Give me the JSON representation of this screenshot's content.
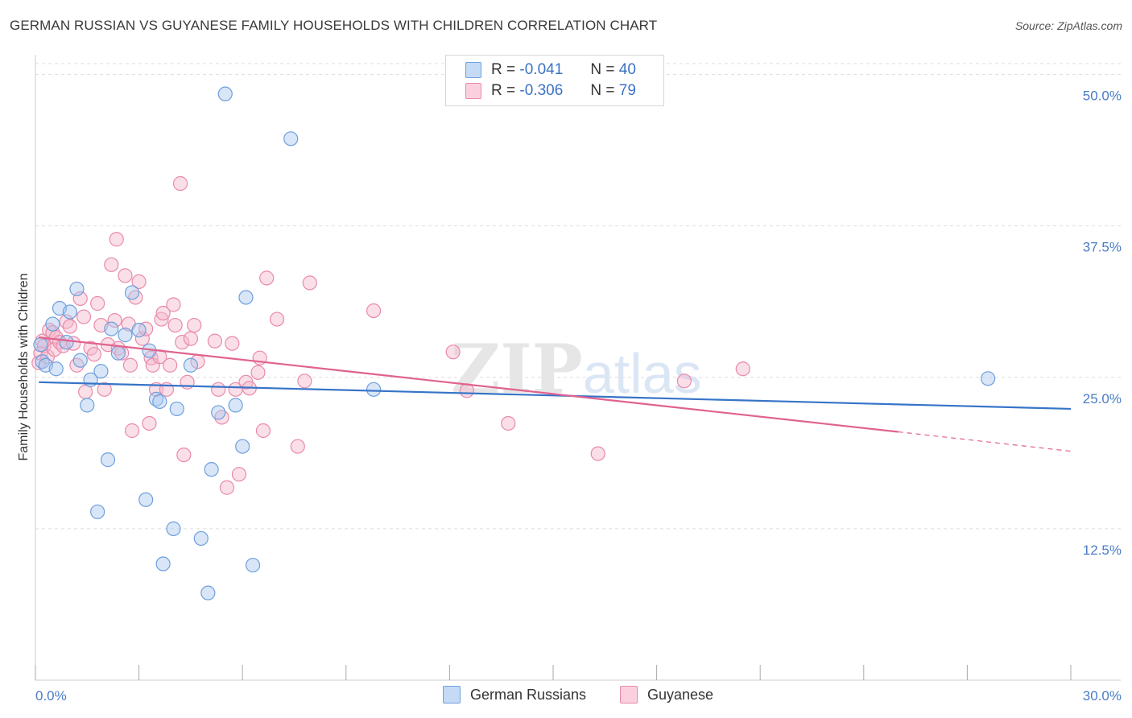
{
  "header": {
    "title": "GERMAN RUSSIAN VS GUYANESE FAMILY HOUSEHOLDS WITH CHILDREN CORRELATION CHART",
    "source": "Source: ZipAtlas.com"
  },
  "watermark": "ZIPatlas",
  "legend": {
    "rows": [
      {
        "r_label": "R = ",
        "r_value": "-0.041",
        "n_label": "N = ",
        "n_value": "40"
      },
      {
        "r_label": "R = ",
        "r_value": "-0.306",
        "n_label": "N = ",
        "n_value": "79"
      }
    ]
  },
  "colors": {
    "blue_fill": "#a9c8f0",
    "blue_stroke": "#6f9fdc",
    "blue_line": "#3674c8",
    "pink_fill": "#f5b8cc",
    "pink_stroke": "#e98aaa",
    "pink_line": "#e0628f",
    "grid": "#dddddd",
    "tick_text": "#4a7cc4"
  },
  "chart_data": {
    "type": "scatter",
    "title": "GERMAN RUSSIAN VS GUYANESE FAMILY HOUSEHOLDS WITH CHILDREN CORRELATION CHART",
    "xlabel": "",
    "ylabel": "Family Households with Children",
    "xlim": [
      0,
      30
    ],
    "ylim": [
      0,
      51.5
    ],
    "x_tick_labels": [
      "0.0%",
      "30.0%"
    ],
    "y_ticks": [
      {
        "value": 12.5,
        "label": "12.5%"
      },
      {
        "value": 25.0,
        "label": "25.0%"
      },
      {
        "value": 37.5,
        "label": "37.5%"
      },
      {
        "value": 50.0,
        "label": "50.0%"
      }
    ],
    "series": [
      {
        "name": "German Russians",
        "color": "blue",
        "r": "-0.041",
        "n": "40",
        "trend": {
          "x0": 0.1,
          "y0": 24.6,
          "x1": 30,
          "y1": 22.4
        },
        "points": [
          [
            0.15,
            27.7
          ],
          [
            0.2,
            26.3
          ],
          [
            0.3,
            26.0
          ],
          [
            0.5,
            29.4
          ],
          [
            0.6,
            25.7
          ],
          [
            0.7,
            30.7
          ],
          [
            0.9,
            27.9
          ],
          [
            1.0,
            30.4
          ],
          [
            1.2,
            32.3
          ],
          [
            1.3,
            26.4
          ],
          [
            1.5,
            22.7
          ],
          [
            1.6,
            24.8
          ],
          [
            1.8,
            13.9
          ],
          [
            1.9,
            25.5
          ],
          [
            2.1,
            18.2
          ],
          [
            2.2,
            29.0
          ],
          [
            2.4,
            27.0
          ],
          [
            2.6,
            28.5
          ],
          [
            2.8,
            32.0
          ],
          [
            3.0,
            28.9
          ],
          [
            3.2,
            14.9
          ],
          [
            3.3,
            27.2
          ],
          [
            3.5,
            23.2
          ],
          [
            3.6,
            23.0
          ],
          [
            3.7,
            9.6
          ],
          [
            4.0,
            12.5
          ],
          [
            4.1,
            22.4
          ],
          [
            4.5,
            26.0
          ],
          [
            4.8,
            11.7
          ],
          [
            5.0,
            7.2
          ],
          [
            5.1,
            17.4
          ],
          [
            5.3,
            22.1
          ],
          [
            5.5,
            48.4
          ],
          [
            5.8,
            22.7
          ],
          [
            6.0,
            19.3
          ],
          [
            6.1,
            31.6
          ],
          [
            6.3,
            9.5
          ],
          [
            7.4,
            44.7
          ],
          [
            9.8,
            24.0
          ],
          [
            27.6,
            24.9
          ]
        ]
      },
      {
        "name": "Guyanese",
        "color": "pink",
        "r": "-0.306",
        "n": "79",
        "trend": {
          "x0": 0.1,
          "y0": 28.3,
          "x1": 25.0,
          "y1": 20.5,
          "dash_x1": 30,
          "dash_y1": 18.9
        },
        "points": [
          [
            0.1,
            26.2
          ],
          [
            0.15,
            27.0
          ],
          [
            0.2,
            28.0
          ],
          [
            0.25,
            27.6
          ],
          [
            0.35,
            26.7
          ],
          [
            0.4,
            28.9
          ],
          [
            0.5,
            28.7
          ],
          [
            0.55,
            27.3
          ],
          [
            0.6,
            28.3
          ],
          [
            0.7,
            27.9
          ],
          [
            0.8,
            27.6
          ],
          [
            0.9,
            29.6
          ],
          [
            1.0,
            29.2
          ],
          [
            1.1,
            27.8
          ],
          [
            1.2,
            26.0
          ],
          [
            1.3,
            31.5
          ],
          [
            1.4,
            30.0
          ],
          [
            1.45,
            23.8
          ],
          [
            1.6,
            27.4
          ],
          [
            1.7,
            26.9
          ],
          [
            1.8,
            31.1
          ],
          [
            1.9,
            29.3
          ],
          [
            2.0,
            24.0
          ],
          [
            2.1,
            27.7
          ],
          [
            2.2,
            34.3
          ],
          [
            2.3,
            29.7
          ],
          [
            2.35,
            36.4
          ],
          [
            2.4,
            27.4
          ],
          [
            2.5,
            27.0
          ],
          [
            2.6,
            33.4
          ],
          [
            2.7,
            29.4
          ],
          [
            2.75,
            26.0
          ],
          [
            2.8,
            20.6
          ],
          [
            2.9,
            31.6
          ],
          [
            3.0,
            32.9
          ],
          [
            3.1,
            28.2
          ],
          [
            3.2,
            29.0
          ],
          [
            3.3,
            21.2
          ],
          [
            3.35,
            26.6
          ],
          [
            3.4,
            26.0
          ],
          [
            3.5,
            24.0
          ],
          [
            3.6,
            26.7
          ],
          [
            3.65,
            29.8
          ],
          [
            3.7,
            30.3
          ],
          [
            3.8,
            24.0
          ],
          [
            3.9,
            26.0
          ],
          [
            4.0,
            31.0
          ],
          [
            4.05,
            29.3
          ],
          [
            4.2,
            41.0
          ],
          [
            4.25,
            27.9
          ],
          [
            4.3,
            18.6
          ],
          [
            4.4,
            24.6
          ],
          [
            4.5,
            28.2
          ],
          [
            4.6,
            29.3
          ],
          [
            4.7,
            26.3
          ],
          [
            5.2,
            28.0
          ],
          [
            5.3,
            24.0
          ],
          [
            5.4,
            21.7
          ],
          [
            5.55,
            15.9
          ],
          [
            5.7,
            27.8
          ],
          [
            5.8,
            24.0
          ],
          [
            5.9,
            17.0
          ],
          [
            6.1,
            24.6
          ],
          [
            6.2,
            24.1
          ],
          [
            6.45,
            25.4
          ],
          [
            6.5,
            26.6
          ],
          [
            6.6,
            20.6
          ],
          [
            6.7,
            33.2
          ],
          [
            7.0,
            29.8
          ],
          [
            7.6,
            19.3
          ],
          [
            7.8,
            24.7
          ],
          [
            7.95,
            32.8
          ],
          [
            9.8,
            30.5
          ],
          [
            12.1,
            27.1
          ],
          [
            12.5,
            23.9
          ],
          [
            13.7,
            21.2
          ],
          [
            16.3,
            18.7
          ],
          [
            18.8,
            24.7
          ],
          [
            20.5,
            25.7
          ]
        ]
      }
    ],
    "legend": [
      "German Russians",
      "Guyanese"
    ]
  }
}
